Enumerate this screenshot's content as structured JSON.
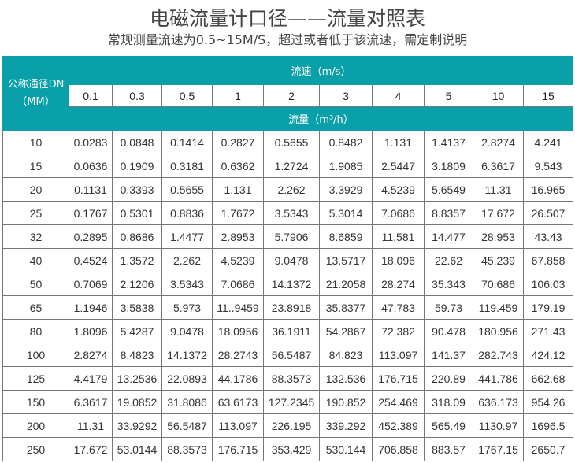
{
  "title": "电磁流量计口径——流量对照表",
  "subtitle": "常规测量流速为0.5~15M/S，超过或者低于该流速，需定制说明",
  "colors": {
    "header_teal": "#0aa0a9"
  },
  "table": {
    "dn_header_line1": "公称通径DN",
    "dn_header_line2": "（MM）",
    "velocity_header": "流速（m/s）",
    "flow_header": "流量（m³/h）",
    "velocities": [
      "0.1",
      "0.3",
      "0.5",
      "1",
      "2",
      "3",
      "4",
      "5",
      "10",
      "15"
    ],
    "rows": [
      [
        "10",
        "0.0283",
        "0.0848",
        "0.1414",
        "0.2827",
        "0.5655",
        "0.8482",
        "1.131",
        "1.4137",
        "2.8274",
        "4.241"
      ],
      [
        "15",
        "0.0636",
        "0.1909",
        "0.3181",
        "0.6362",
        "1.2724",
        "1.9085",
        "2.5447",
        "3.1809",
        "6.3617",
        "9.543"
      ],
      [
        "20",
        "0.1131",
        "0.3393",
        "0.5655",
        "1.131",
        "2.262",
        "3.3929",
        "4.5239",
        "5.6549",
        "11.31",
        "16.965"
      ],
      [
        "25",
        "0.1767",
        "0.5301",
        "0.8836",
        "1.7672",
        "3.5343",
        "5.3014",
        "7.0686",
        "8.8357",
        "17.672",
        "26.507"
      ],
      [
        "32",
        "0.2895",
        "0.8686",
        "1.4477",
        "2.8953",
        "5.7906",
        "8.6859",
        "11.581",
        "14.477",
        "28.953",
        "43.43"
      ],
      [
        "40",
        "0.4524",
        "1.3572",
        "2.262",
        "4.5239",
        "9.0478",
        "13.5717",
        "18.096",
        "22.62",
        "45.239",
        "67.858"
      ],
      [
        "50",
        "0.7069",
        "2.1206",
        "3.5343",
        "7.0686",
        "14.1372",
        "21.2058",
        "28.274",
        "35.343",
        "70.686",
        "106.03"
      ],
      [
        "65",
        "1.1946",
        "3.5838",
        "5.973",
        "11..9459",
        "23.8918",
        "35.8377",
        "47.783",
        "59.73",
        "119.459",
        "179.19"
      ],
      [
        "80",
        "1.8096",
        "5.4287",
        "9.0478",
        "18.0956",
        "36.1911",
        "54.2867",
        "72.382",
        "90.478",
        "180.956",
        "271.43"
      ],
      [
        "100",
        "2.8274",
        "8.4823",
        "14.1372",
        "28.2743",
        "56.5487",
        "84.823",
        "113.097",
        "141.37",
        "282.743",
        "424.12"
      ],
      [
        "125",
        "4.4179",
        "13.2536",
        "22.0893",
        "44.1786",
        "88.3573",
        "132.536",
        "176.715",
        "220.89",
        "441.786",
        "662.68"
      ],
      [
        "150",
        "6.3617",
        "19.0852",
        "31.8086",
        "63.6173",
        "127.2345",
        "190.852",
        "254.469",
        "318.09",
        "636.173",
        "954.26"
      ],
      [
        "200",
        "11.31",
        "33.9292",
        "56.5487",
        "113.097",
        "226.195",
        "339.292",
        "452.389",
        "565.49",
        "1130.97",
        "1696.5"
      ],
      [
        "250",
        "17.672",
        "53.0144",
        "88.3573",
        "176.715",
        "353.429",
        "530.144",
        "706.858",
        "883.57",
        "1767.15",
        "2650.7"
      ]
    ]
  }
}
